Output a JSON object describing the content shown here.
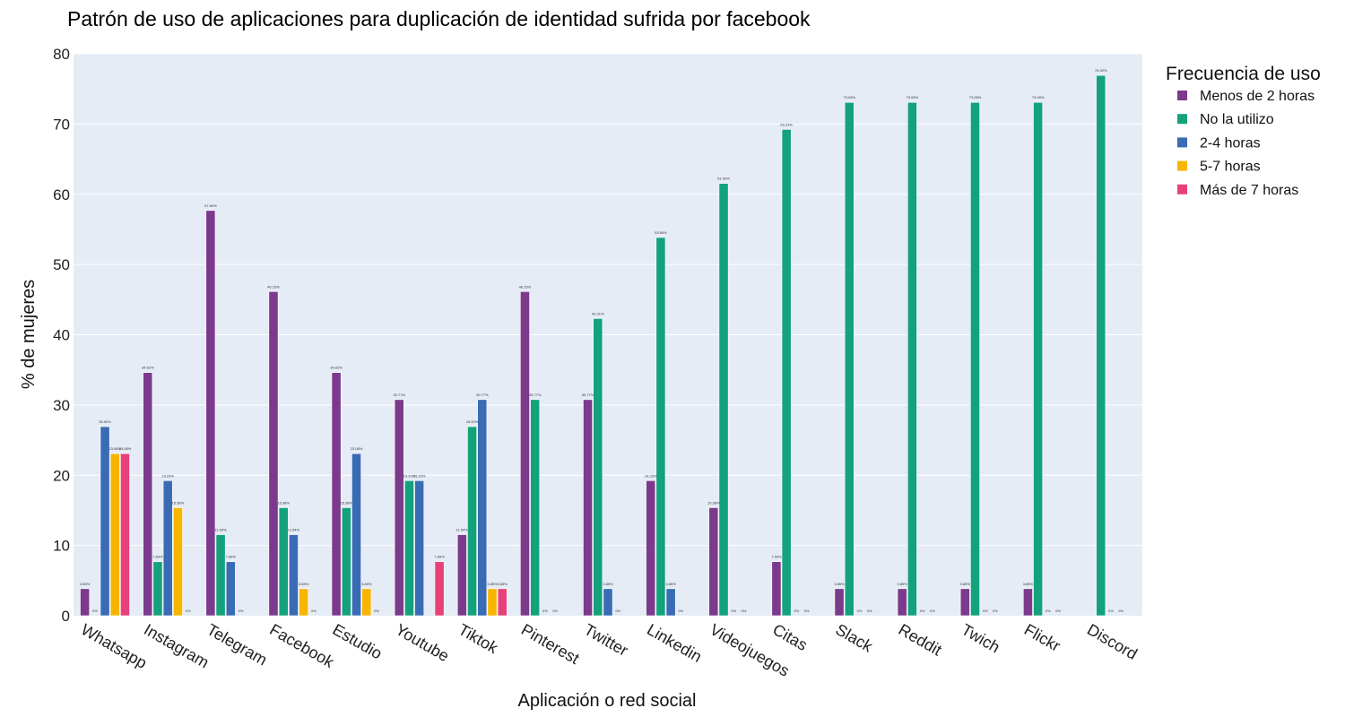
{
  "chart_data": {
    "type": "bar",
    "title": "Patrón de uso de aplicaciones para duplicación de identidad sufrida por facebook",
    "xlabel": "Aplicación o red social",
    "ylabel": "% de mujeres",
    "ylim": [
      0,
      80
    ],
    "yticks": [
      0,
      10,
      20,
      30,
      40,
      50,
      60,
      70,
      80
    ],
    "grid": true,
    "legend": {
      "title": "Frecuencia de uso",
      "placement": "top-right"
    },
    "categories": [
      "Whatsapp",
      "Instagram",
      "Telegram",
      "Facebook",
      "Estudio",
      "Youtube",
      "Tiktok",
      "Pinterest",
      "Twitter",
      "Linkedin",
      "Videojuegos",
      "Citas",
      "Slack",
      "Reddit",
      "Twich",
      "Flickr",
      "Discord"
    ],
    "series": [
      {
        "name": "Menos de 2 horas",
        "color": "#7b3a8c",
        "values": [
          3.85,
          34.62,
          57.69,
          46.15,
          34.62,
          30.77,
          11.54,
          46.15,
          30.77,
          19.23,
          15.38,
          7.69,
          3.85,
          3.85,
          3.85,
          3.85,
          null
        ],
        "labels": [
          "3.85%",
          "34.62%",
          "57.69%",
          "46.15%",
          "34.62%",
          "30.77%",
          "11.54%",
          "46.15%",
          "30.77%",
          "19.23%",
          "15.38%",
          "7.69%",
          "3.85%",
          "3.85%",
          "3.85%",
          "3.85%",
          ""
        ]
      },
      {
        "name": "No la utilizo",
        "color": "#13a27c",
        "values": [
          0,
          7.69,
          11.54,
          15.38,
          15.38,
          19.23,
          26.92,
          30.77,
          42.31,
          53.85,
          61.54,
          69.23,
          73.08,
          73.08,
          73.08,
          73.08,
          76.92
        ],
        "labels": [
          "0%",
          "7.69%",
          "11.54%",
          "15.38%",
          "15.38%",
          "19.23%",
          "26.92%",
          "30.77%",
          "42.31%",
          "53.85%",
          "61.54%",
          "69.23%",
          "73.08%",
          "73.08%",
          "73.08%",
          "73.08%",
          "76.92%"
        ]
      },
      {
        "name": "2-4 horas",
        "color": "#3a6bb5",
        "values": [
          26.92,
          19.23,
          7.69,
          11.54,
          23.08,
          19.23,
          30.77,
          0,
          3.85,
          3.85,
          0,
          0,
          0,
          0,
          0,
          0,
          0
        ],
        "labels": [
          "26.92%",
          "19.23%",
          "7.69%",
          "11.54%",
          "23.08%",
          "19.23%",
          "30.77%",
          "0%",
          "3.85%",
          "3.85%",
          "0%",
          "0%",
          "0%",
          "0%",
          "0%",
          "0%",
          "0%"
        ]
      },
      {
        "name": "5-7 horas",
        "color": "#f7b500",
        "values": [
          23.08,
          15.38,
          0,
          3.85,
          3.85,
          null,
          3.85,
          0,
          0,
          0,
          0,
          0,
          0,
          0,
          0,
          0,
          0
        ],
        "labels": [
          "23.08%",
          "15.38%",
          "0%",
          "3.85%",
          "3.85%",
          "",
          "3.85%",
          "0%",
          "0%",
          "0%",
          "0%",
          "0%",
          "0%",
          "0%",
          "0%",
          "0%",
          "0%"
        ]
      },
      {
        "name": "Más de 7 horas",
        "color": "#e8417a",
        "values": [
          23.08,
          0,
          null,
          0,
          0,
          7.69,
          3.85,
          null,
          null,
          null,
          null,
          null,
          null,
          null,
          null,
          null,
          null
        ],
        "labels": [
          "23.08%",
          "0%",
          "",
          "0%",
          "0%",
          "7.69%",
          "3.85%",
          "",
          "",
          "",
          "",
          "",
          "",
          "",
          "",
          "",
          ""
        ]
      }
    ]
  }
}
